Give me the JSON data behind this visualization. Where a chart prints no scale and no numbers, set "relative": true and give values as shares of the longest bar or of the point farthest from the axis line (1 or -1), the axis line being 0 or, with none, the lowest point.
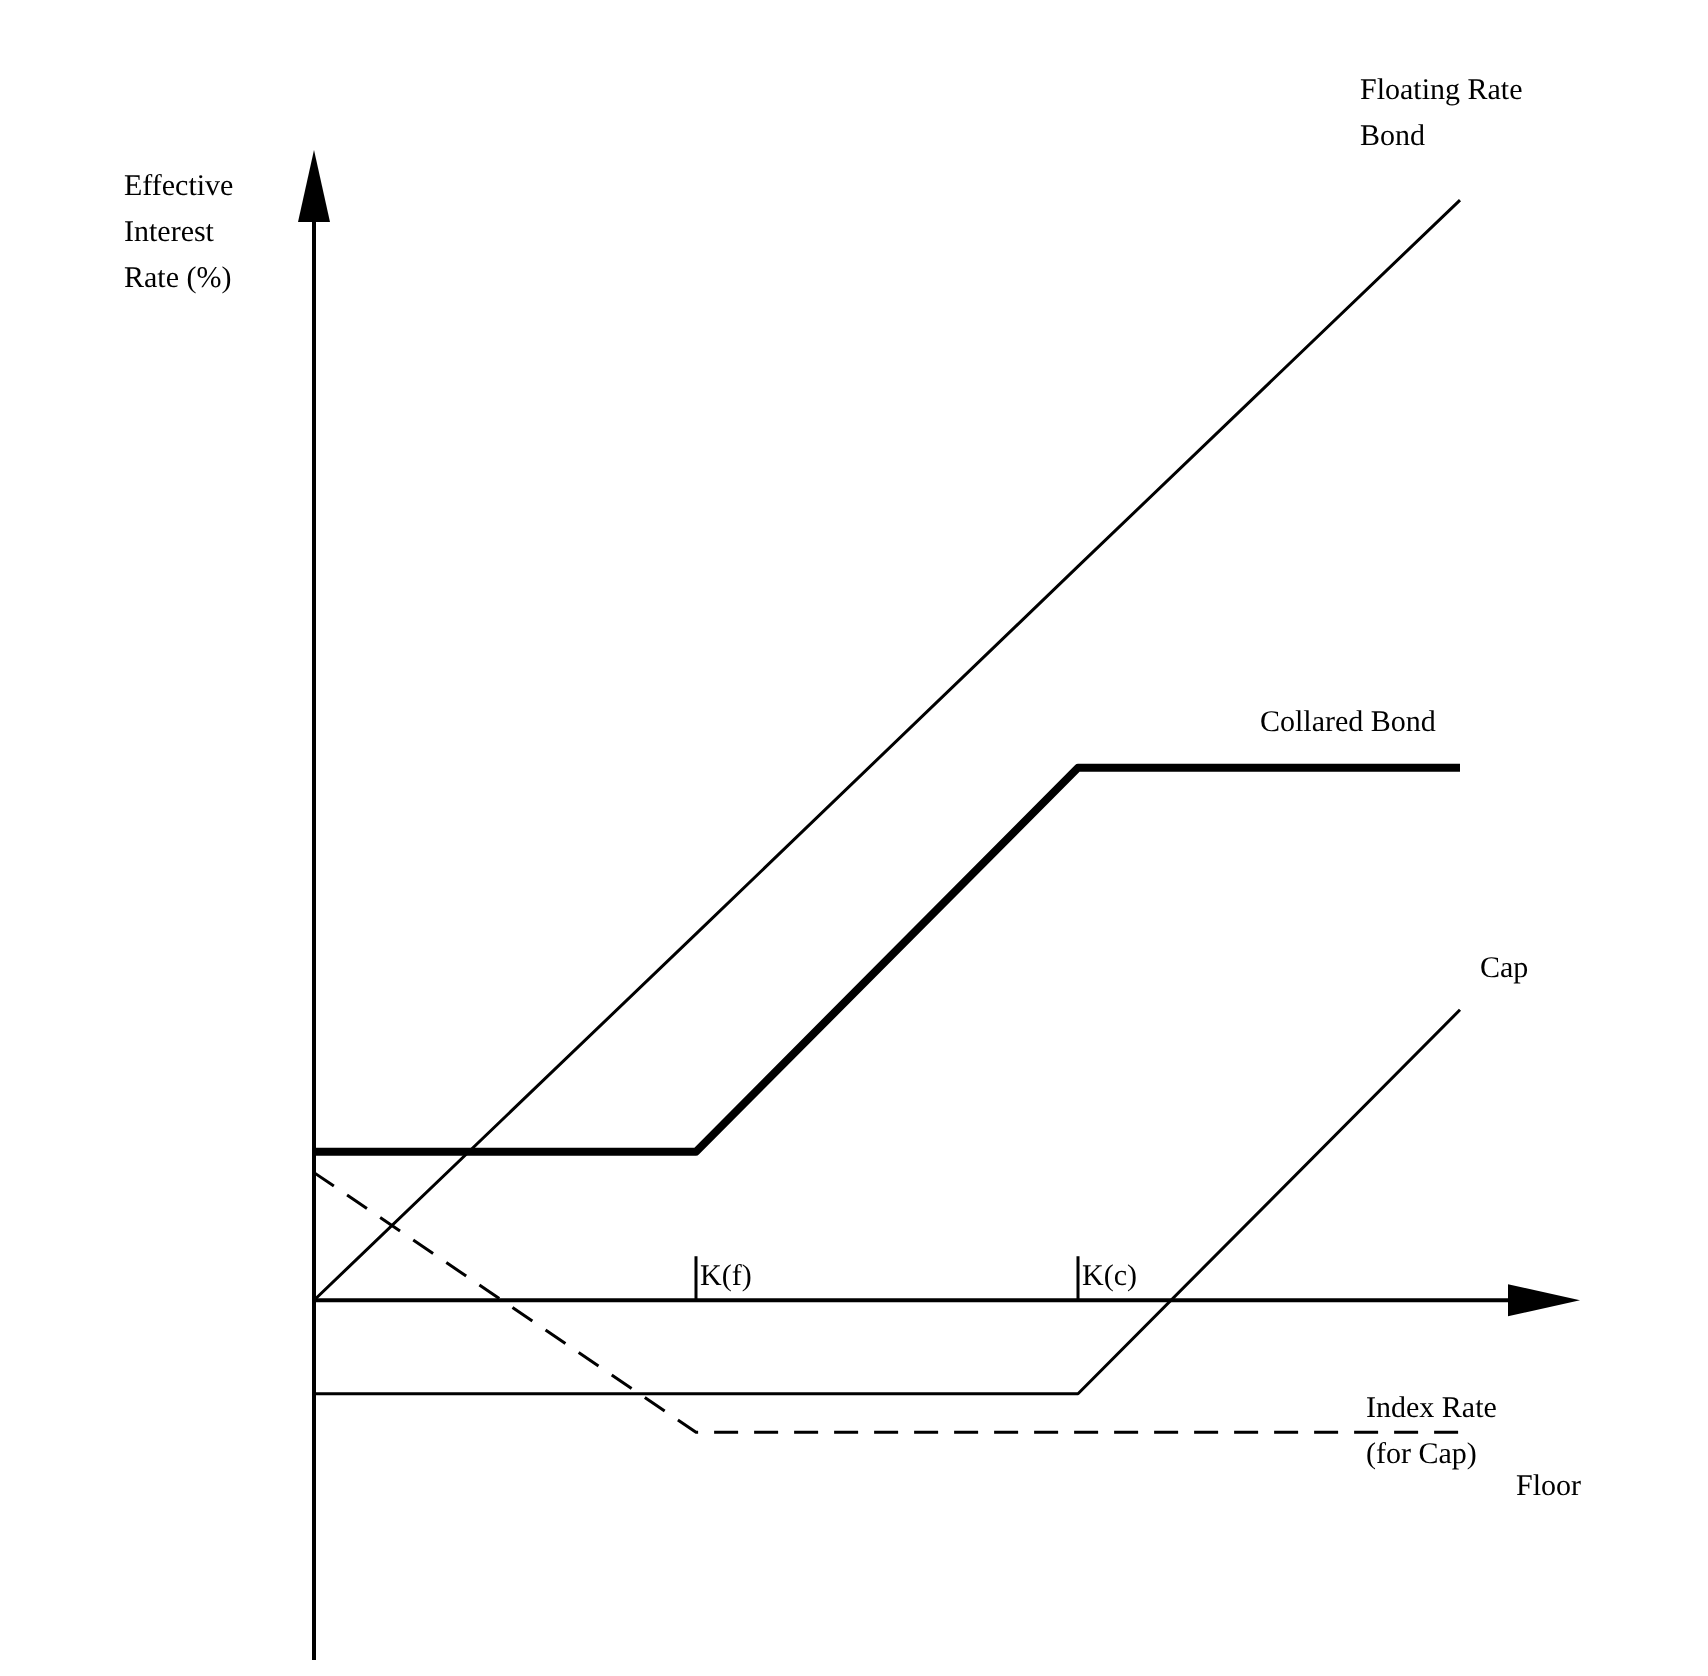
{
  "chart_data": {
    "type": "line",
    "relative": true,
    "xlabel": "Index Rate (for Cap)",
    "ylabel": "Effective Interest Rate (%)",
    "categories": [
      null,
      "K(f)",
      "K(c)",
      null
    ],
    "legend": false,
    "grid": false,
    "marker": "none",
    "series": [
      {
        "name": "Floating Rate Bond",
        "color": "#000000",
        "values": [
          0,
          0.333,
          0.667,
          1
        ]
      },
      {
        "name": "Collared Bond",
        "color": "#000000",
        "values": [
          0.135,
          0.135,
          0.484,
          0.484
        ]
      },
      {
        "name": "Cap",
        "color": "#000000",
        "values": [
          -0.085,
          -0.085,
          -0.085,
          0.264
        ]
      },
      {
        "name": "Floor",
        "color": "#000000",
        "line_style": "dashed",
        "values": [
          0.116,
          -0.12,
          -0.12,
          -0.12
        ]
      }
    ]
  }
}
